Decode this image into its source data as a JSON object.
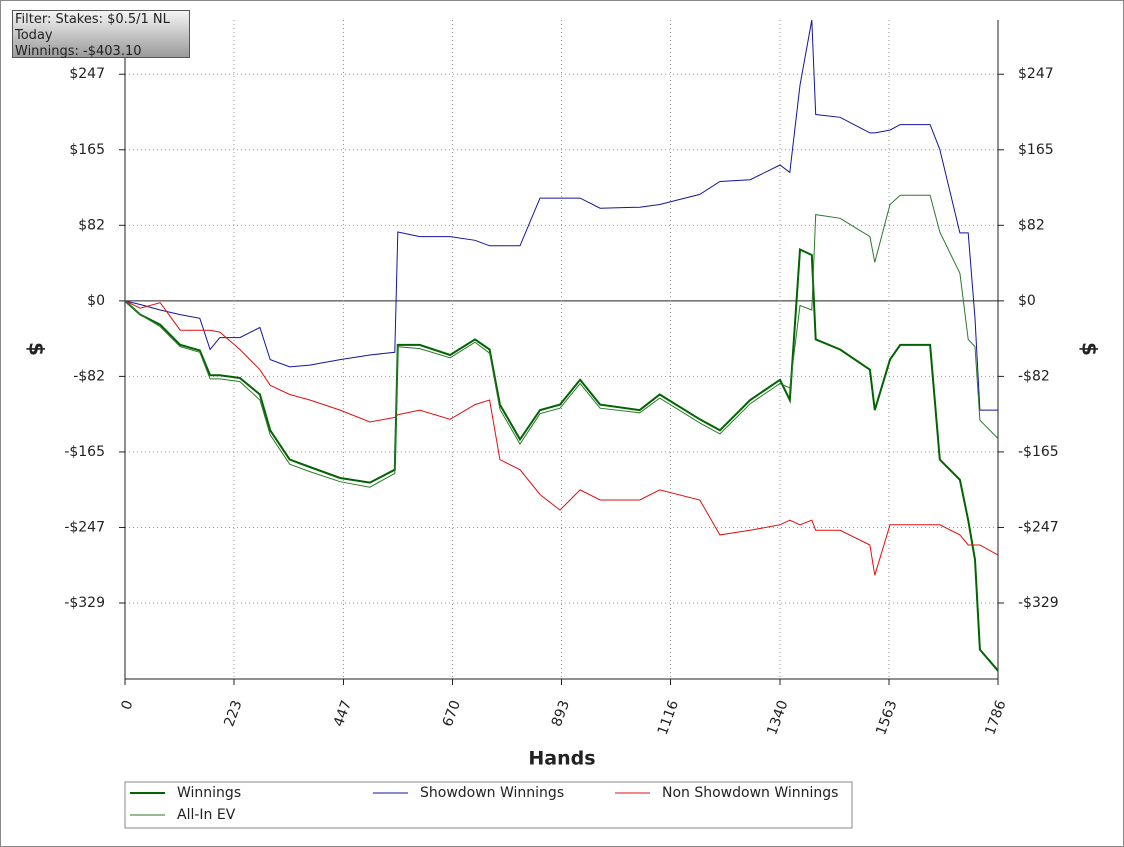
{
  "chart_data": {
    "type": "line",
    "annotations": [
      "Filter: Stakes: $0.5/1 NL",
      "Today",
      "Winnings: -$403.10"
    ],
    "x_label": "Hands",
    "y_label": "$",
    "y2_label": "$",
    "xlim": [
      0,
      1786
    ],
    "xticks": [
      0,
      223,
      447,
      670,
      893,
      1116,
      1340,
      1563,
      1786
    ],
    "ylim": [
      -412,
      306
    ],
    "yticks": [
      {
        "value": -329.2,
        "label": "-$329"
      },
      {
        "value": -246.9,
        "label": "-$247"
      },
      {
        "value": -164.6,
        "label": "-$165"
      },
      {
        "value": -82.3,
        "label": "-$82"
      },
      {
        "value": 0,
        "label": "$0"
      },
      {
        "value": 82.3,
        "label": "$82"
      },
      {
        "value": 164.6,
        "label": "$165"
      },
      {
        "value": 246.9,
        "label": "$247"
      }
    ],
    "grid": true,
    "x": [
      0,
      31,
      72,
      113,
      153,
      174,
      194,
      235,
      276,
      297,
      337,
      378,
      440,
      501,
      552,
      558,
      603,
      665,
      716,
      746,
      767,
      808,
      849,
      890,
      931,
      972,
      1053,
      1094,
      1176,
      1217,
      1279,
      1340,
      1360,
      1381,
      1405,
      1413,
      1463,
      1524,
      1534,
      1565,
      1586,
      1647,
      1667,
      1708,
      1725,
      1739,
      1749,
      1786
    ],
    "series": [
      {
        "name": "Winnings",
        "color": "#006400",
        "width": 2,
        "values": [
          0,
          -15,
          -26,
          -48,
          -54,
          -81,
          -81,
          -84,
          -102,
          -141,
          -173,
          -181,
          -193,
          -198,
          -184,
          -48,
          -48,
          -59,
          -42,
          -53,
          -113,
          -151,
          -119,
          -113,
          -86,
          -113,
          -119,
          -102,
          -129,
          -141,
          -108,
          -86,
          -108,
          56,
          50,
          -42,
          -53,
          -75,
          -119,
          -64,
          -48,
          -48,
          -173,
          -195,
          -239,
          -282,
          -380,
          -403
        ]
      },
      {
        "name": "Showdown Winnings",
        "color": "#1414a0",
        "width": 1,
        "values": [
          0,
          -4,
          -10,
          -15,
          -19,
          -53,
          -40,
          -40,
          -29,
          -64,
          -72,
          -70,
          -64,
          -59,
          -56,
          75,
          70,
          70,
          66,
          60,
          60,
          60,
          112,
          112,
          112,
          101,
          102,
          105,
          116,
          130,
          132,
          148,
          140,
          235,
          306,
          203,
          200,
          183,
          183,
          186,
          192,
          192,
          165,
          74,
          74,
          -19,
          -119,
          -119
        ]
      },
      {
        "name": "Non Showdown Winnings",
        "color": "#e01010",
        "width": 1,
        "values": [
          0,
          -8,
          -2,
          -32,
          -32,
          -32,
          -34,
          -53,
          -75,
          -92,
          -102,
          -108,
          -119,
          -132,
          -127,
          -124,
          -119,
          -129,
          -113,
          -108,
          -173,
          -184,
          -211,
          -228,
          -206,
          -217,
          -217,
          -206,
          -217,
          -255,
          -250,
          -244,
          -239,
          -244,
          -239,
          -250,
          -250,
          -266,
          -299,
          -244,
          -244,
          -244,
          -244,
          -255,
          -266,
          -266,
          -266,
          -277
        ]
      },
      {
        "name": "All-In EV",
        "color": "#2a7a2a",
        "width": 1,
        "values": [
          0,
          -15,
          -28,
          -50,
          -56,
          -85,
          -85,
          -88,
          -108,
          -146,
          -178,
          -186,
          -197,
          -203,
          -188,
          -50,
          -52,
          -62,
          -45,
          -57,
          -118,
          -156,
          -123,
          -117,
          -90,
          -117,
          -122,
          -106,
          -133,
          -145,
          -112,
          -90,
          -95,
          -5,
          -10,
          94,
          90,
          70,
          42,
          105,
          115,
          115,
          75,
          30,
          -42,
          -50,
          -130,
          -150
        ]
      }
    ]
  }
}
